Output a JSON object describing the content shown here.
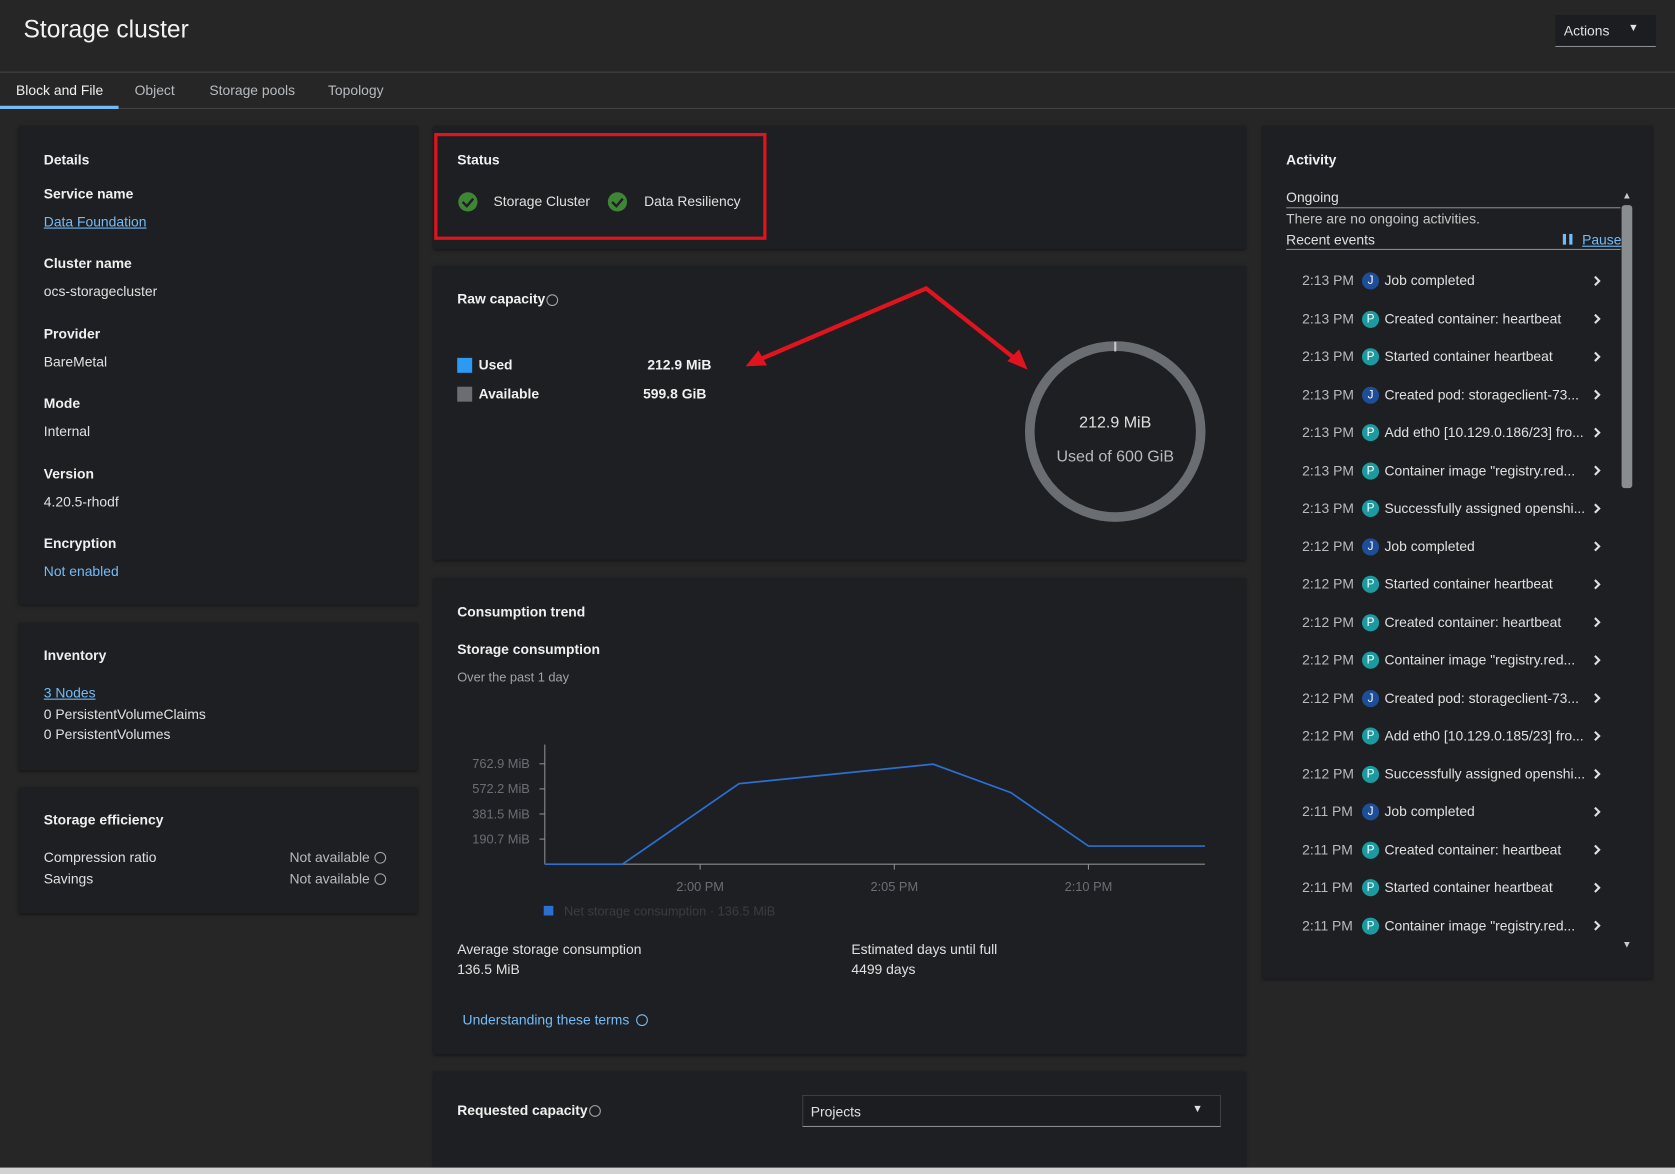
{
  "header": {
    "title": "Storage cluster",
    "actions": "Actions"
  },
  "tabs": [
    "Block and File",
    "Object",
    "Storage pools",
    "Topology"
  ],
  "details": {
    "title": "Details",
    "fields": [
      {
        "label": "Service name",
        "value": "Data Foundation"
      },
      {
        "label": "Cluster name",
        "value": "ocs-storagecluster"
      },
      {
        "label": "Provider",
        "value": "BareMetal"
      },
      {
        "label": "Mode",
        "value": "Internal"
      },
      {
        "label": "Version",
        "value": "4.20.5-rhodf"
      },
      {
        "label": "Encryption",
        "value": "Not enabled"
      }
    ]
  },
  "inventory": {
    "title": "Inventory",
    "items": [
      "3 Nodes",
      "0 PersistentVolumeClaims",
      "0 PersistentVolumes"
    ]
  },
  "efficiency": {
    "title": "Storage efficiency",
    "rows": [
      {
        "label": "Compression ratio",
        "value": "Not available"
      },
      {
        "label": "Savings",
        "value": "Not available"
      }
    ]
  },
  "status": {
    "title": "Status",
    "items": [
      "Storage Cluster",
      "Data Resiliency"
    ]
  },
  "raw_capacity": {
    "title": "Raw capacity",
    "legend": [
      {
        "name": "Used",
        "value": "212.9 MiB"
      },
      {
        "name": "Available",
        "value": "599.8 GiB"
      }
    ],
    "donut_value": "212.9 MiB",
    "donut_caption": "Used of 600 GiB"
  },
  "consumption_trend": {
    "title": "Consumption trend",
    "subtitle": "Storage consumption",
    "period": "Over the past 1 day",
    "chart": {
      "type": "line",
      "x": [
        836,
        838,
        841,
        846,
        848,
        850,
        853
      ],
      "series": [
        {
          "name": "Net storage consumption · 136.5 MiB",
          "color": "#2b6fd0",
          "values": [
            0,
            0,
            612,
            760,
            544,
            138,
            138
          ]
        }
      ],
      "xlim": [
        836,
        853
      ],
      "ylim": [
        0,
        909
      ],
      "xticks": [
        {
          "value": 840,
          "label": "2:00 PM"
        },
        {
          "value": 845,
          "label": "2:05 PM"
        },
        {
          "value": 850,
          "label": "2:10 PM"
        }
      ],
      "yticks": [
        {
          "value": 190.7,
          "label": "190.7 MiB"
        },
        {
          "value": 381.5,
          "label": "381.5 MiB"
        },
        {
          "value": 572.2,
          "label": "572.2 MiB"
        },
        {
          "value": 762.9,
          "label": "762.9 MiB"
        }
      ]
    },
    "stats": [
      {
        "label": "Average storage consumption",
        "value": "136.5 MiB"
      },
      {
        "label": "Estimated days until full",
        "value": "4499 days"
      }
    ],
    "link": "Understanding these terms"
  },
  "requested_capacity": {
    "title": "Requested capacity",
    "select": "Projects"
  },
  "activity": {
    "title": "Activity",
    "ongoing": "Ongoing",
    "ongoing_empty": "There are no ongoing activities.",
    "recent": "Recent events",
    "pause": "Pause",
    "events": [
      {
        "time": "2:13 PM",
        "badge": "J",
        "text": "Job completed"
      },
      {
        "time": "2:13 PM",
        "badge": "P",
        "text": "Created container: heartbeat"
      },
      {
        "time": "2:13 PM",
        "badge": "P",
        "text": "Started container heartbeat"
      },
      {
        "time": "2:13 PM",
        "badge": "J",
        "text": "Created pod: storageclient-73..."
      },
      {
        "time": "2:13 PM",
        "badge": "P",
        "text": "Add eth0 [10.129.0.186/23] fro..."
      },
      {
        "time": "2:13 PM",
        "badge": "P",
        "text": "Container image \"registry.red..."
      },
      {
        "time": "2:13 PM",
        "badge": "P",
        "text": "Successfully assigned openshi..."
      },
      {
        "time": "2:12 PM",
        "badge": "J",
        "text": "Job completed"
      },
      {
        "time": "2:12 PM",
        "badge": "P",
        "text": "Started container heartbeat"
      },
      {
        "time": "2:12 PM",
        "badge": "P",
        "text": "Created container: heartbeat"
      },
      {
        "time": "2:12 PM",
        "badge": "P",
        "text": "Container image \"registry.red..."
      },
      {
        "time": "2:12 PM",
        "badge": "J",
        "text": "Created pod: storageclient-73..."
      },
      {
        "time": "2:12 PM",
        "badge": "P",
        "text": "Add eth0 [10.129.0.185/23] fro..."
      },
      {
        "time": "2:12 PM",
        "badge": "P",
        "text": "Successfully assigned openshi..."
      },
      {
        "time": "2:11 PM",
        "badge": "J",
        "text": "Job completed"
      },
      {
        "time": "2:11 PM",
        "badge": "P",
        "text": "Created container: heartbeat"
      },
      {
        "time": "2:11 PM",
        "badge": "P",
        "text": "Started container heartbeat"
      },
      {
        "time": "2:11 PM",
        "badge": "P",
        "text": "Container image \"registry.red..."
      }
    ]
  }
}
